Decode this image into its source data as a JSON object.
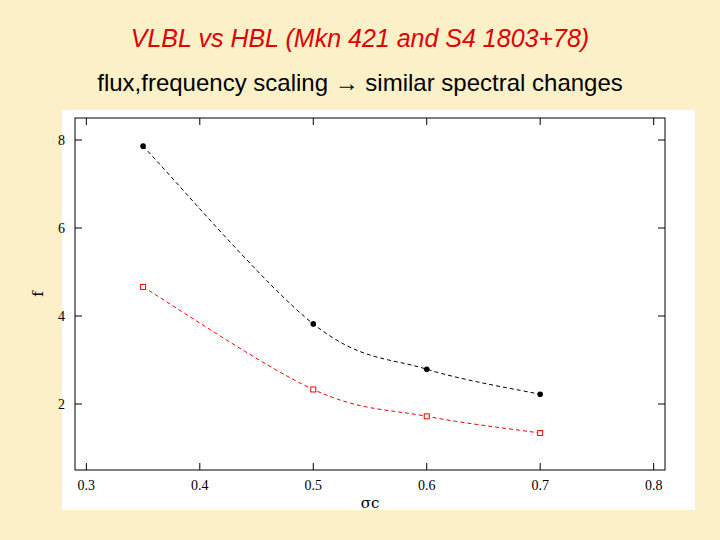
{
  "chart_data": {
    "type": "scatter",
    "title": "VLBL vs HBL (Mkn 421 and S4 1803+78)",
    "subtitle": "flux,frequency scaling → similar spectral changes",
    "x_label": "σc",
    "y_label": "f",
    "x": [
      0.35,
      0.5,
      0.6,
      0.7
    ],
    "series": [
      {
        "color": "#000000",
        "marker": "circle",
        "line_style": "dashed",
        "values": [
          7.86,
          3.82,
          2.79,
          2.22
        ]
      },
      {
        "color": "#ff0000",
        "marker": "open-square",
        "line_style": "dashed",
        "values": [
          4.66,
          2.33,
          1.72,
          1.34
        ]
      }
    ],
    "xlim": [
      0.29,
      0.81
    ],
    "xticks": [
      0.3,
      0.4,
      0.5,
      0.6,
      0.7,
      0.8
    ],
    "ylim": [
      0.5,
      8.5
    ],
    "yticks": [
      2,
      4,
      6,
      8
    ],
    "grid": false
  }
}
